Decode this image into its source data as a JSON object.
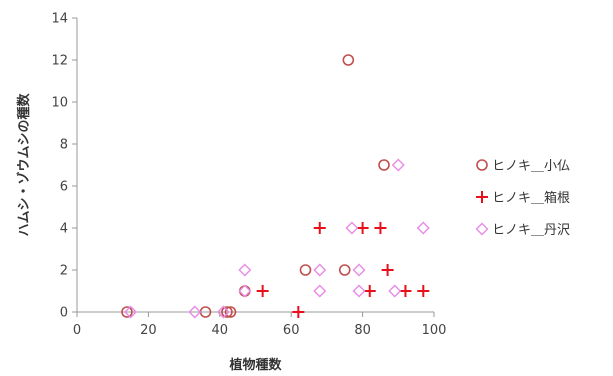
{
  "chart_data": {
    "type": "scatter",
    "title": "",
    "xlabel": "植物種数",
    "ylabel": "ハムシ・ゾウムシの種数",
    "xlim": [
      0,
      100
    ],
    "ylim": [
      0,
      14
    ],
    "x_ticks": [
      "0",
      "20",
      "40",
      "60",
      "80",
      "100"
    ],
    "y_ticks": [
      "0",
      "2",
      "4",
      "6",
      "8",
      "10",
      "12",
      "14"
    ],
    "grid": false,
    "legend_position": "right",
    "series": [
      {
        "name": "ヒノキ＿小仏",
        "marker": "circle",
        "color": "#c0504d",
        "points": [
          {
            "x": 14,
            "y": 0
          },
          {
            "x": 36,
            "y": 0
          },
          {
            "x": 42,
            "y": 0
          },
          {
            "x": 43,
            "y": 0
          },
          {
            "x": 47,
            "y": 1
          },
          {
            "x": 64,
            "y": 2
          },
          {
            "x": 75,
            "y": 2
          },
          {
            "x": 76,
            "y": 12
          },
          {
            "x": 86,
            "y": 7
          }
        ]
      },
      {
        "name": "ヒノキ＿箱根",
        "marker": "plus",
        "color": "#e8101a",
        "points": [
          {
            "x": 52,
            "y": 1
          },
          {
            "x": 62,
            "y": 0
          },
          {
            "x": 68,
            "y": 4
          },
          {
            "x": 80,
            "y": 4
          },
          {
            "x": 85,
            "y": 4
          },
          {
            "x": 82,
            "y": 1
          },
          {
            "x": 87,
            "y": 2
          },
          {
            "x": 92,
            "y": 1
          },
          {
            "x": 97,
            "y": 1
          }
        ]
      },
      {
        "name": "ヒノキ＿丹沢",
        "marker": "diamond",
        "color": "#e88be8",
        "points": [
          {
            "x": 15,
            "y": 0
          },
          {
            "x": 33,
            "y": 0
          },
          {
            "x": 41,
            "y": 0
          },
          {
            "x": 47,
            "y": 2
          },
          {
            "x": 47,
            "y": 1
          },
          {
            "x": 68,
            "y": 2
          },
          {
            "x": 68,
            "y": 1
          },
          {
            "x": 77,
            "y": 4
          },
          {
            "x": 79,
            "y": 2
          },
          {
            "x": 79,
            "y": 1
          },
          {
            "x": 89,
            "y": 1
          },
          {
            "x": 90,
            "y": 7
          },
          {
            "x": 97,
            "y": 4
          }
        ]
      }
    ]
  }
}
